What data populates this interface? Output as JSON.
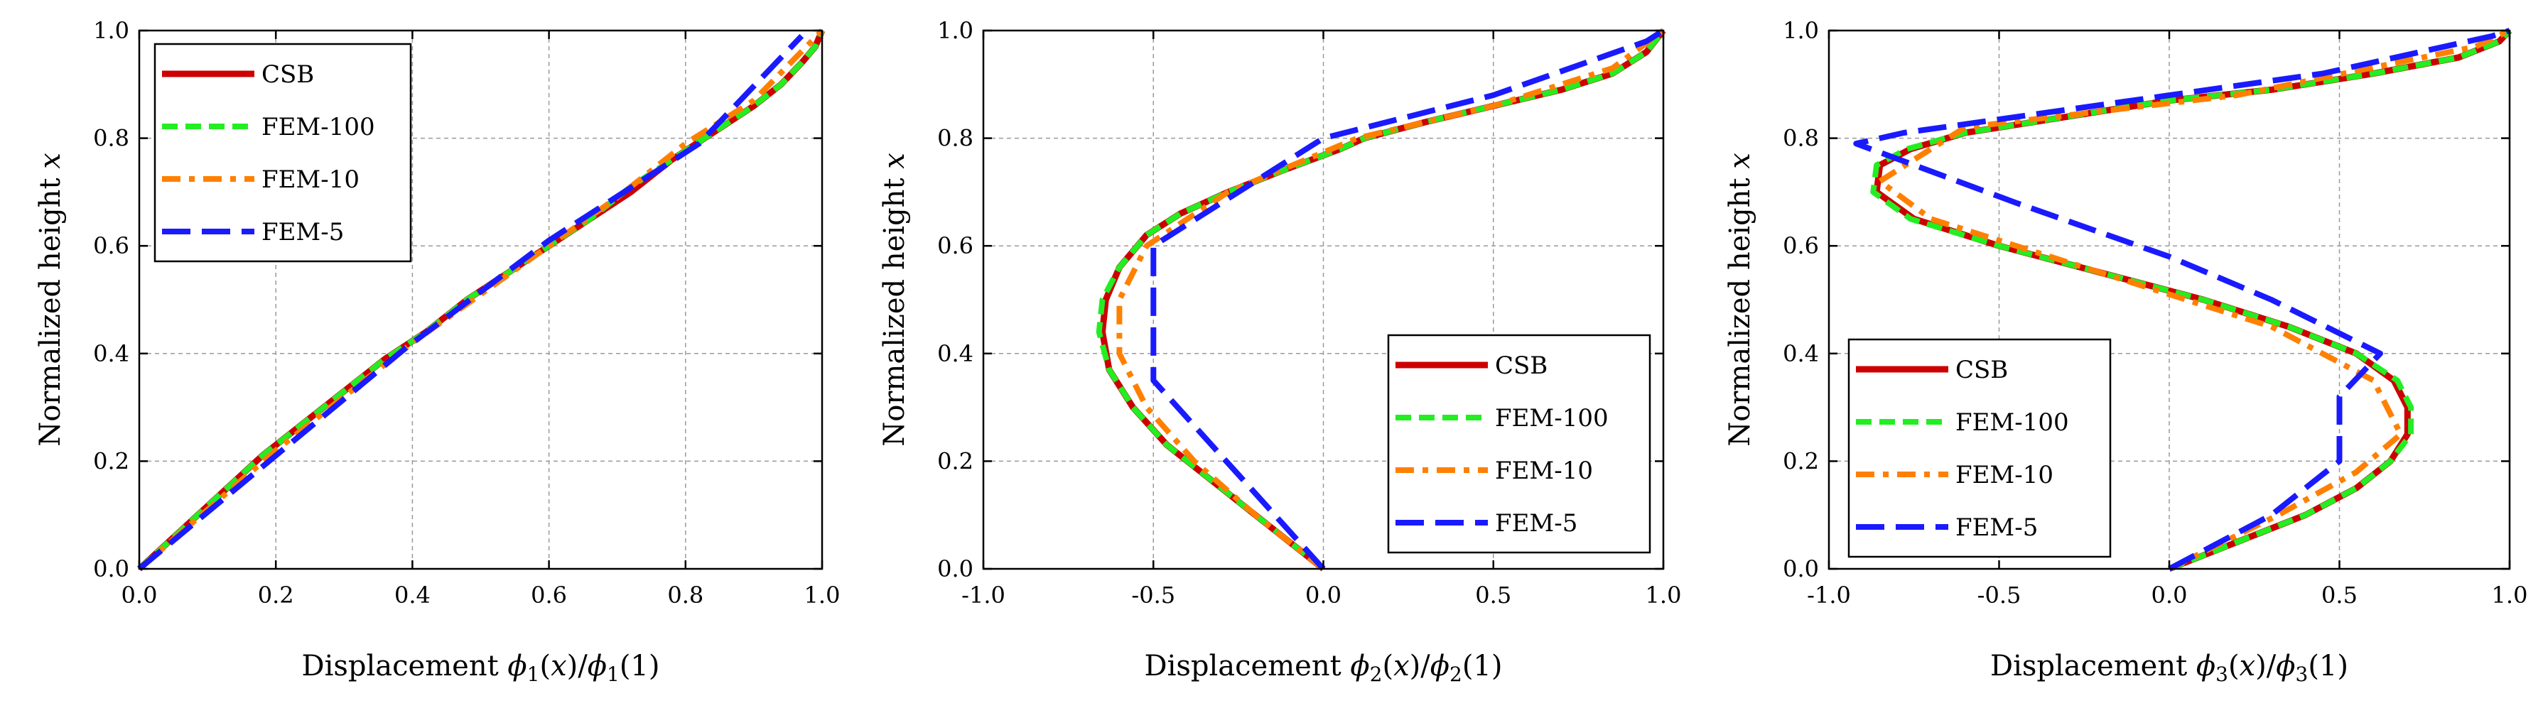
{
  "chart_data": [
    {
      "type": "line",
      "xlabel": "Displacement ϕ1(x)/ϕ1(1)",
      "xlabel_parts": {
        "prefix": "Displacement ",
        "sym": "ϕ",
        "sub": "1",
        "mid": "(x)/",
        "sub2": "1",
        "tail": "(1)"
      },
      "ylabel": "Normalized height x",
      "xlim": [
        0,
        1
      ],
      "ylim": [
        0,
        1
      ],
      "xticks": [
        0,
        0.2,
        0.4,
        0.6,
        0.8,
        1
      ],
      "xtick_labels": [
        "0.0",
        "0.2",
        "0.4",
        "0.6",
        "0.8",
        "1.0"
      ],
      "yticks": [
        0,
        0.2,
        0.4,
        0.6,
        0.8,
        1
      ],
      "ytick_labels": [
        "0.0",
        "0.2",
        "0.4",
        "0.6",
        "0.8",
        "1.0"
      ],
      "grid": true,
      "legend_position": "top-left",
      "series": [
        {
          "name": "CSB",
          "color": "#cc0000",
          "style": "solid",
          "x": [
            0,
            0.06,
            0.12,
            0.18,
            0.24,
            0.3,
            0.36,
            0.42,
            0.48,
            0.54,
            0.6,
            0.66,
            0.72,
            0.78,
            0.84,
            0.9,
            0.94,
            0.97,
            0.99,
            1.0
          ],
          "y": [
            0,
            0.07,
            0.14,
            0.21,
            0.27,
            0.33,
            0.39,
            0.44,
            0.5,
            0.55,
            0.6,
            0.65,
            0.7,
            0.76,
            0.81,
            0.86,
            0.9,
            0.94,
            0.97,
            1.0
          ]
        },
        {
          "name": "FEM-100",
          "color": "#22ee22",
          "style": "dash",
          "x": [
            0,
            0.06,
            0.12,
            0.18,
            0.24,
            0.3,
            0.36,
            0.42,
            0.48,
            0.54,
            0.6,
            0.66,
            0.72,
            0.78,
            0.84,
            0.9,
            0.94,
            0.97,
            0.99,
            1.0
          ],
          "y": [
            0,
            0.07,
            0.14,
            0.21,
            0.27,
            0.33,
            0.39,
            0.44,
            0.5,
            0.55,
            0.6,
            0.65,
            0.71,
            0.76,
            0.81,
            0.86,
            0.9,
            0.94,
            0.97,
            1.0
          ]
        },
        {
          "name": "FEM-10",
          "color": "#ff8000",
          "style": "dashdot",
          "x": [
            0,
            0.1,
            0.2,
            0.3,
            0.4,
            0.5,
            0.6,
            0.7,
            0.8,
            0.9,
            1.0
          ],
          "y": [
            0,
            0.11,
            0.22,
            0.32,
            0.42,
            0.51,
            0.6,
            0.69,
            0.79,
            0.87,
            1.0
          ]
        },
        {
          "name": "FEM-5",
          "color": "#1a1aff",
          "style": "longdash",
          "x": [
            0,
            0.19,
            0.39,
            0.6,
            0.82,
            0.97
          ],
          "y": [
            0,
            0.2,
            0.41,
            0.61,
            0.79,
            0.99
          ]
        }
      ]
    },
    {
      "type": "line",
      "xlabel": "Displacement ϕ2(x)/ϕ2(1)",
      "xlabel_parts": {
        "prefix": "Displacement ",
        "sym": "ϕ",
        "sub": "2",
        "mid": "(x)/",
        "sub2": "2",
        "tail": "(1)"
      },
      "ylabel": "Normalized height x",
      "xlim": [
        -1,
        1
      ],
      "ylim": [
        0,
        1
      ],
      "xticks": [
        -1,
        -0.5,
        0,
        0.5,
        1
      ],
      "xtick_labels": [
        "-1.0",
        "-0.5",
        "0.0",
        "0.5",
        "1.0"
      ],
      "yticks": [
        0,
        0.2,
        0.4,
        0.6,
        0.8,
        1
      ],
      "ytick_labels": [
        "0.0",
        "0.2",
        "0.4",
        "0.6",
        "0.8",
        "1.0"
      ],
      "grid": true,
      "legend_position": "bottom-right",
      "series": [
        {
          "name": "CSB",
          "color": "#cc0000",
          "style": "solid",
          "x": [
            0,
            -0.1,
            -0.22,
            -0.34,
            -0.46,
            -0.56,
            -0.63,
            -0.65,
            -0.64,
            -0.6,
            -0.52,
            -0.42,
            -0.28,
            -0.12,
            0.05,
            0.12,
            0.3,
            0.5,
            0.7,
            0.85,
            0.95,
            1.0
          ],
          "y": [
            0,
            0.05,
            0.11,
            0.17,
            0.23,
            0.3,
            0.37,
            0.44,
            0.5,
            0.56,
            0.62,
            0.66,
            0.7,
            0.74,
            0.78,
            0.8,
            0.83,
            0.86,
            0.89,
            0.92,
            0.96,
            1.0
          ]
        },
        {
          "name": "FEM-100",
          "color": "#22ee22",
          "style": "dash",
          "x": [
            0,
            -0.1,
            -0.22,
            -0.34,
            -0.46,
            -0.56,
            -0.63,
            -0.66,
            -0.65,
            -0.6,
            -0.52,
            -0.42,
            -0.28,
            -0.12,
            0.05,
            0.12,
            0.3,
            0.5,
            0.7,
            0.85,
            0.95,
            1.0
          ],
          "y": [
            0,
            0.05,
            0.11,
            0.17,
            0.23,
            0.3,
            0.37,
            0.44,
            0.5,
            0.56,
            0.62,
            0.66,
            0.7,
            0.74,
            0.78,
            0.8,
            0.83,
            0.86,
            0.89,
            0.92,
            0.96,
            1.0
          ]
        },
        {
          "name": "FEM-10",
          "color": "#ff8000",
          "style": "dashdot",
          "x": [
            0,
            -0.2,
            -0.38,
            -0.52,
            -0.6,
            -0.6,
            -0.52,
            -0.28,
            0.1,
            0.5,
            0.85,
            1.0
          ],
          "y": [
            0,
            0.1,
            0.2,
            0.3,
            0.4,
            0.5,
            0.6,
            0.7,
            0.8,
            0.86,
            0.93,
            1.0
          ]
        },
        {
          "name": "FEM-5",
          "color": "#1a1aff",
          "style": "longdash",
          "x": [
            0,
            -0.5,
            -0.5,
            -0.5,
            0.0,
            0.5,
            0.95,
            1.0
          ],
          "y": [
            0,
            0.35,
            0.45,
            0.6,
            0.8,
            0.88,
            0.98,
            1.0
          ]
        }
      ]
    },
    {
      "type": "line",
      "xlabel": "Displacement ϕ3(x)/ϕ3(1)",
      "xlabel_parts": {
        "prefix": "Displacement ",
        "sym": "ϕ",
        "sub": "3",
        "mid": "(x)/",
        "sub2": "3",
        "tail": "(1)"
      },
      "ylabel": "Normalized height x",
      "xlim": [
        -1,
        1
      ],
      "ylim": [
        0,
        1
      ],
      "xticks": [
        -1,
        -0.5,
        0,
        0.5,
        1
      ],
      "xtick_labels": [
        "-1.0",
        "-0.5",
        "0.0",
        "0.5",
        "1.0"
      ],
      "yticks": [
        0,
        0.2,
        0.4,
        0.6,
        0.8,
        1
      ],
      "ytick_labels": [
        "0.0",
        "0.2",
        "0.4",
        "0.6",
        "0.8",
        "1.0"
      ],
      "grid": true,
      "legend_position": "bottom-left",
      "series": [
        {
          "name": "CSB",
          "color": "#cc0000",
          "style": "solid",
          "x": [
            0,
            0.2,
            0.4,
            0.55,
            0.65,
            0.7,
            0.7,
            0.66,
            0.55,
            0.35,
            0.1,
            -0.2,
            -0.5,
            -0.75,
            -0.86,
            -0.85,
            -0.76,
            -0.6,
            -0.3,
            0.0,
            0.3,
            0.6,
            0.85,
            0.97,
            1.0
          ],
          "y": [
            0,
            0.05,
            0.1,
            0.15,
            0.2,
            0.25,
            0.3,
            0.35,
            0.4,
            0.45,
            0.5,
            0.55,
            0.6,
            0.65,
            0.7,
            0.75,
            0.78,
            0.81,
            0.84,
            0.87,
            0.89,
            0.92,
            0.95,
            0.98,
            1.0
          ]
        },
        {
          "name": "FEM-100",
          "color": "#22ee22",
          "style": "dash",
          "x": [
            0,
            0.2,
            0.4,
            0.55,
            0.65,
            0.71,
            0.71,
            0.67,
            0.55,
            0.35,
            0.1,
            -0.2,
            -0.5,
            -0.76,
            -0.87,
            -0.86,
            -0.77,
            -0.6,
            -0.3,
            0.0,
            0.3,
            0.6,
            0.85,
            0.97,
            1.0
          ],
          "y": [
            0,
            0.05,
            0.1,
            0.15,
            0.2,
            0.25,
            0.3,
            0.35,
            0.4,
            0.45,
            0.5,
            0.55,
            0.6,
            0.65,
            0.7,
            0.75,
            0.78,
            0.81,
            0.84,
            0.87,
            0.89,
            0.92,
            0.95,
            0.98,
            1.0
          ]
        },
        {
          "name": "FEM-10",
          "color": "#ff8000",
          "style": "dashdot",
          "x": [
            0,
            0.32,
            0.55,
            0.68,
            0.6,
            0.3,
            -0.2,
            -0.7,
            -0.85,
            -0.6,
            0.2,
            0.9,
            1.0
          ],
          "y": [
            0,
            0.1,
            0.18,
            0.25,
            0.35,
            0.45,
            0.55,
            0.65,
            0.72,
            0.82,
            0.88,
            0.97,
            1.0
          ]
        },
        {
          "name": "FEM-5",
          "color": "#1a1aff",
          "style": "longdash",
          "x": [
            0,
            0.3,
            0.5,
            0.5,
            0.5,
            0.62,
            0.3,
            0.0,
            -0.45,
            -0.92,
            -0.78,
            0.45,
            0.95,
            1.0
          ],
          "y": [
            0,
            0.1,
            0.2,
            0.27,
            0.32,
            0.4,
            0.5,
            0.58,
            0.68,
            0.79,
            0.81,
            0.92,
            0.99,
            1.0
          ]
        }
      ]
    }
  ]
}
